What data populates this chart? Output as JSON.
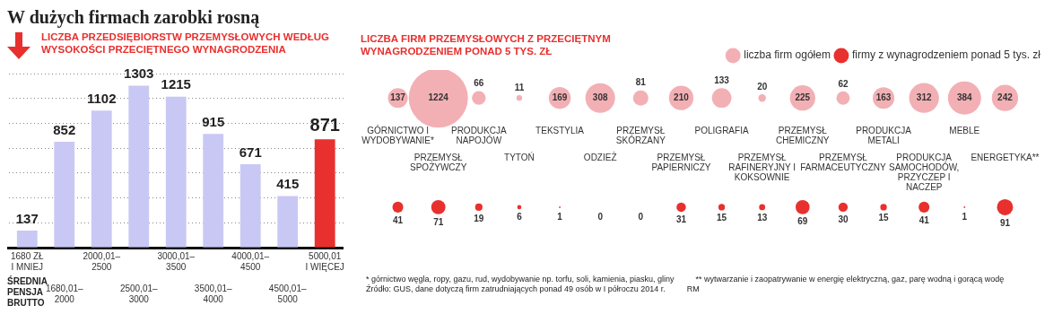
{
  "chart_data": [
    {
      "type": "bar",
      "title": "W dużych firmach zarobki rosną",
      "subtitle": "LICZBA PRZEDSIĘBIORSTW PRZEMYSŁOWYCH WEDŁUG WYSOKOŚCI PRZECIĘTNEGO WYNAGRODZENIA",
      "xlabel": "ŚREDNIA PENSJA BRUTTO",
      "categories": [
        "1680 ZŁ I MNIEJ",
        "1680,01–2000",
        "2000,01–2500",
        "2500,01–3000",
        "3000,01–3500",
        "3500,01–4000",
        "4000,01–4500",
        "4500,01–5000",
        "5000,01 I WIĘCEJ"
      ],
      "values": [
        137,
        852,
        1102,
        1303,
        1215,
        915,
        671,
        415,
        871
      ],
      "colors": [
        "#c9c8f4",
        "#c9c8f4",
        "#c9c8f4",
        "#c9c8f4",
        "#c9c8f4",
        "#c9c8f4",
        "#c9c8f4",
        "#c9c8f4",
        "#e8302e"
      ],
      "grid": "y",
      "tick_labels": "x",
      "data_labels": true
    },
    {
      "type": "other",
      "title": "LICZBA FIRM PRZEMYSŁOWYCH Z PRZECIĘTNYM WYNAGRODZENIEM PONAD 5 TYS. ZŁ",
      "categories": [
        "GÓRNICTWO I WYDOBYWANIE*",
        "PRZEMYSŁ SPOŻYWCZY",
        "PRODUKCJA NAPOJÓW",
        "TYTOŃ",
        "TEKSTYLIA",
        "ODZIEŻ",
        "PRZEMYSŁ SKÓRZANY",
        "PRZEMYSŁ PAPIERNICZY",
        "POLIGRAFIA",
        "PRZEMYSŁ RAFINERYJNY I KOKSOWNIE",
        "PRZEMYSŁ CHEMICZNY",
        "PRZEMYSŁ FARMACEUTYCZNY",
        "PRODUKCJA METALI",
        "PRODUKCJA SAMOCHODÓW, PRZYCZEP I NACZEP",
        "MEBLE",
        "ENERGETYKA**"
      ],
      "series": [
        {
          "name": "liczba firm ogółem",
          "color": "#f2b0b5",
          "values": [
            137,
            1224,
            66,
            11,
            169,
            308,
            81,
            210,
            133,
            20,
            225,
            62,
            163,
            312,
            384,
            242
          ]
        },
        {
          "name": "firmy z wynagrodzeniem ponad 5 tys. zł",
          "color": "#e8302e",
          "values": [
            41,
            71,
            19,
            6,
            1,
            0,
            0,
            31,
            15,
            13,
            69,
            30,
            15,
            41,
            1,
            91
          ]
        }
      ],
      "data_labels": true,
      "legend": "top right",
      "annotations": [
        "* górnictwo węgla, ropy, gazu, rud, wydobywanie np. torfu, soli, kamienia, piasku, gliny",
        "** wytwarzanie i zaopatrywanie w energię elektryczną, gaz, parę wodną i gorącą wodę",
        "Źródło: GUS, dane dotyczą firm zatrudniających ponad 49 osób w I półroczu 2014 r.",
        "RM"
      ]
    }
  ]
}
